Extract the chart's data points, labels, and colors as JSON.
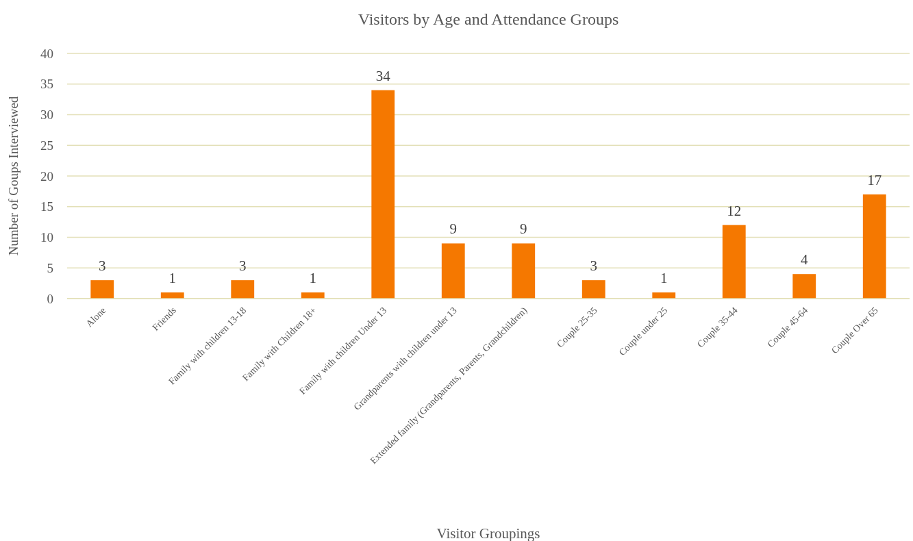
{
  "chart_data": {
    "type": "bar",
    "title": "Visitors by Age and Attendance Groups",
    "xlabel": "Visitor Groupings",
    "ylabel": "Number of Goups Interviewed",
    "categories": [
      "Alone",
      "Friends",
      "Family with children 13-18",
      "Family with Children 18+",
      "Family with children Under 13",
      "Grandparents with children under 13",
      "Extended family (Grandparents, Parents, Grandchildren)",
      "Couple 25-35",
      "Couple under 25",
      "Couple 35-44",
      "Couple 45-64",
      "Couple Over 65"
    ],
    "values": [
      3,
      1,
      3,
      1,
      34,
      9,
      9,
      3,
      1,
      12,
      4,
      17
    ],
    "color": "#f57800",
    "ylim": [
      0,
      40
    ],
    "yticks": [
      0,
      5,
      10,
      15,
      20,
      25,
      30,
      35,
      40
    ],
    "grid": "y",
    "data_labels": true
  }
}
